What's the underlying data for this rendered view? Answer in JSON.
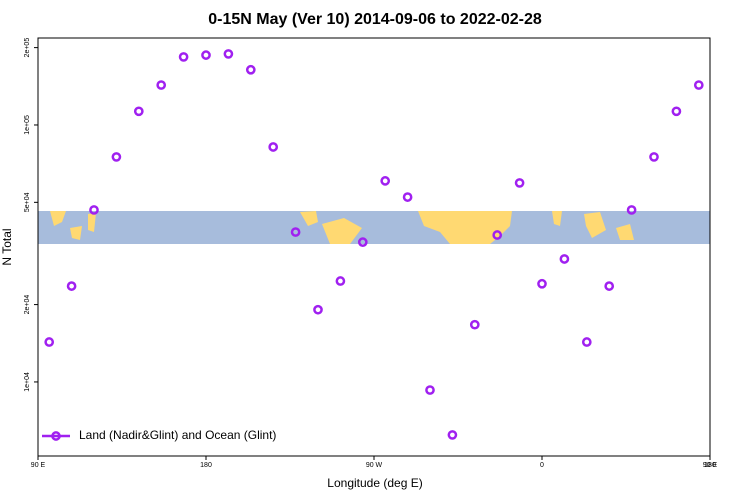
{
  "chart_data": {
    "type": "scatter",
    "title": "0-15N May (Ver 10)   2014-09-06 to 2022-02-28",
    "xlabel": "Longitude (deg E)",
    "ylabel": "N Total",
    "log_y": true,
    "legend": "bottom-left",
    "xlim": [
      90,
      450
    ],
    "xticks": [
      {
        "value": 90,
        "label": "90 E"
      },
      180,
      {
        "value": 270,
        "label": "90 W"
      },
      {
        "value": 360,
        "label": "0"
      },
      {
        "value": 450,
        "label": "90 E"
      },
      {
        "value": 540,
        "label": "180"
      }
    ],
    "ylim": [
      5150,
      218000
    ],
    "yticks": [
      {
        "value": 10000,
        "label": "1e+04"
      },
      {
        "value": 20000,
        "label": "2e+04"
      },
      {
        "value": 50000,
        "label": "5e+04"
      },
      {
        "value": 100000,
        "label": "1e+05"
      },
      {
        "value": 200000,
        "label": "2e+05"
      }
    ],
    "series": [
      {
        "name": "Land (Nadir&Glint) and Ocean (Glint)",
        "color": "#a020f0",
        "x": [
          96,
          108,
          120,
          132,
          144,
          156,
          168,
          180,
          192,
          204,
          216,
          228,
          240,
          252,
          264,
          276,
          288,
          300,
          312,
          324,
          336,
          348,
          360,
          372,
          384,
          396,
          408,
          420,
          432,
          444
        ],
        "values": [
          14300,
          23600,
          46700,
          75100,
          113000,
          143000,
          184000,
          187000,
          189000,
          164000,
          82100,
          38300,
          19100,
          24700,
          35000,
          60600,
          52400,
          9300,
          6220,
          16700,
          37300,
          59500,
          24100,
          30100,
          14300,
          23600,
          46700,
          75100,
          113000,
          143000
        ]
      }
    ]
  }
}
